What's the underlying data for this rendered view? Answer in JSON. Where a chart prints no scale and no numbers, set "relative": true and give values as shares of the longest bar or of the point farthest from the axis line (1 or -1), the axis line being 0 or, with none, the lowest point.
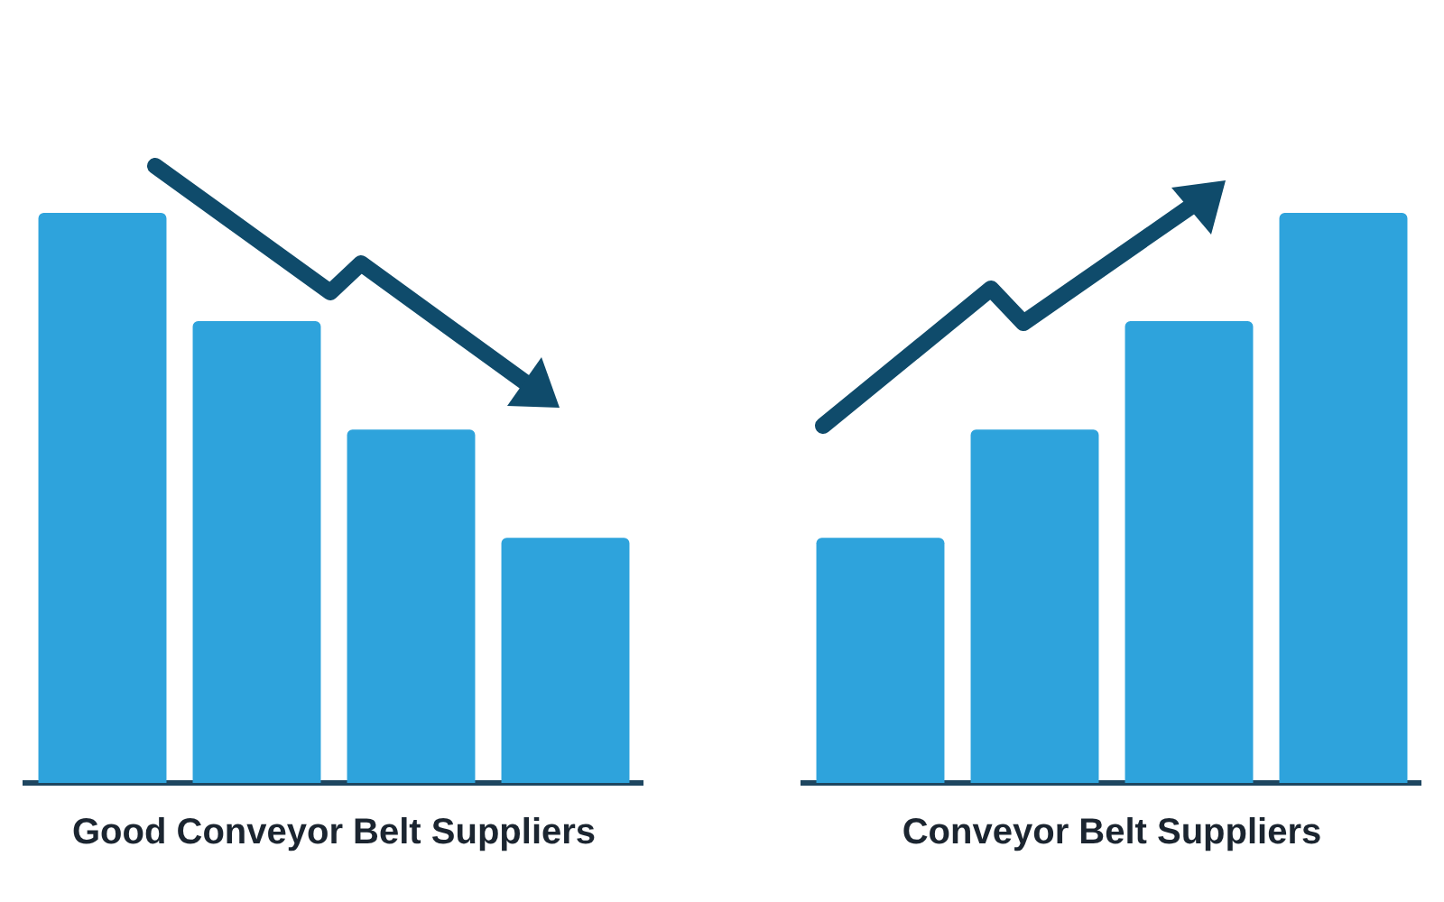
{
  "chart_data": [
    {
      "type": "bar",
      "categories": [
        null,
        null,
        null,
        null
      ],
      "values": [
        1,
        0.81,
        0.62,
        0.43
      ],
      "color": "#2ea3dc",
      "relative": true,
      "xlabel": "Good Conveyor Belt Suppliers"
    },
    {
      "type": "bar",
      "categories": [
        null,
        null,
        null,
        null
      ],
      "values": [
        0.43,
        0.62,
        0.81,
        1
      ],
      "color": "#2ea3dc",
      "relative": true,
      "xlabel": "Conveyor Belt Suppliers"
    }
  ]
}
